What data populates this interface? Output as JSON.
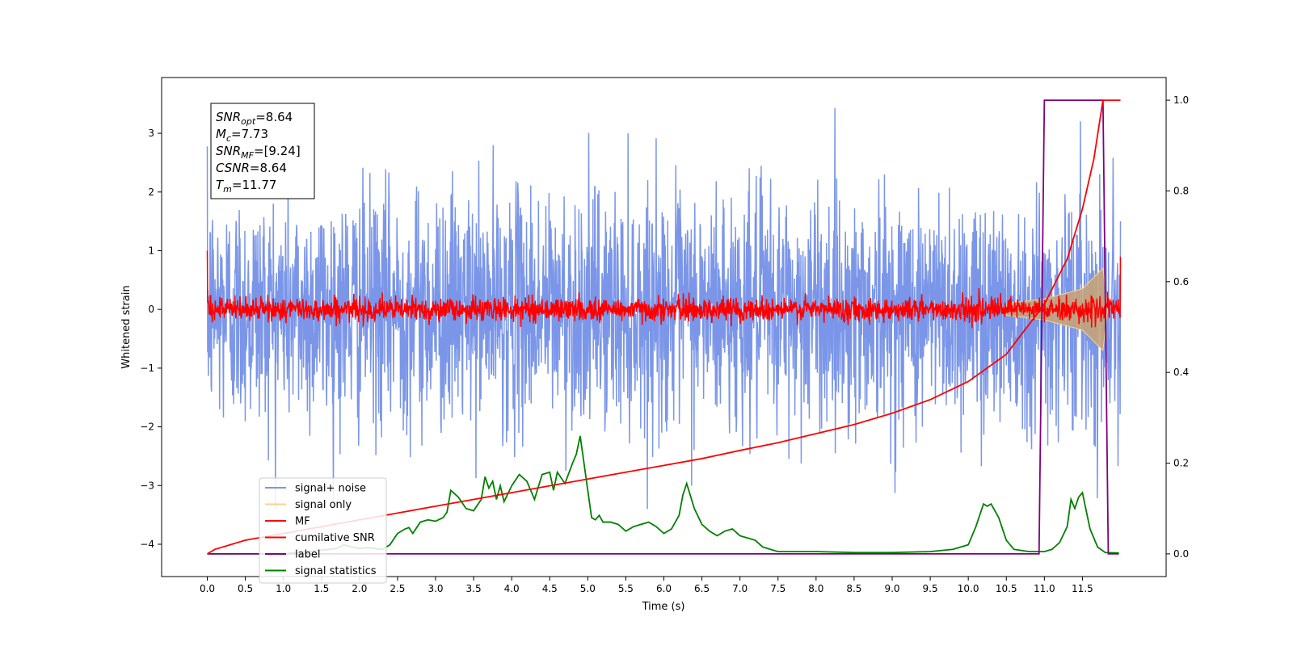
{
  "chart_data": {
    "type": "line",
    "xlabel": "Time (s)",
    "ylabel": "Whitened strain",
    "xlim": [
      -0.6,
      12.6
    ],
    "ylim": [
      -4.55,
      3.95
    ],
    "y2lim": [
      -0.05,
      1.05
    ],
    "x_ticks": [
      0.0,
      0.5,
      1.0,
      1.5,
      2.0,
      2.5,
      3.0,
      3.5,
      4.0,
      4.5,
      5.0,
      5.5,
      6.0,
      6.5,
      7.0,
      7.5,
      8.0,
      8.5,
      9.0,
      9.5,
      10.0,
      10.5,
      11.0,
      11.5
    ],
    "x_tick_labels": [
      "0.0",
      "0.5",
      "1.0",
      "1.5",
      "2.0",
      "2.5",
      "3.0",
      "3.5",
      "4.0",
      "4.5",
      "5.0",
      "5.5",
      "6.0",
      "6.5",
      "7.0",
      "7.5",
      "8.0",
      "8.5",
      "9.0",
      "9.5",
      "10.0",
      "10.5",
      "11.0",
      "11.5"
    ],
    "y_ticks": [
      3,
      2,
      1,
      0,
      -1,
      -2,
      -3,
      -4
    ],
    "y_tick_labels": [
      "3",
      "2",
      "1",
      "0",
      "−1",
      "−2",
      "−3",
      "−4"
    ],
    "y2_ticks": [
      1.0,
      0.8,
      0.6,
      0.4,
      0.2,
      0.0
    ],
    "y2_tick_labels": [
      "1.0",
      "0.8",
      "0.6",
      "0.4",
      "0.2",
      "0.0"
    ],
    "annotation": {
      "lines": [
        {
          "base": "SNR",
          "sub": "opt",
          "value": "=8.64"
        },
        {
          "base": "M",
          "sub": "c",
          "value": "=7.73"
        },
        {
          "base": "SNR",
          "sub": "MF",
          "value": "=[9.24]"
        },
        {
          "base": "CSNR",
          "sub": "",
          "value": "=8.64"
        },
        {
          "base": "T",
          "sub": "m",
          "value": "=11.77"
        }
      ]
    },
    "legend": {
      "placement": "lower-left",
      "entries": [
        {
          "label": "signal+ noise",
          "color": "#7b96e8"
        },
        {
          "label": "signal only",
          "color": "#f9d48c"
        },
        {
          "label": "MF",
          "color": "#ff0000"
        },
        {
          "label": "cumilative SNR",
          "color": "#ff0000"
        },
        {
          "label": "label",
          "color": "#800080"
        },
        {
          "label": "signal statistics",
          "color": "#008000"
        }
      ]
    },
    "series": [
      {
        "name": "signal+ noise",
        "axis": "left",
        "color": "#7b96e8",
        "x_range": [
          0.0,
          12.0
        ],
        "noise_std": 1.0,
        "noise_range": [
          -3.4,
          3.55
        ]
      },
      {
        "name": "signal only",
        "axis": "left",
        "color": "#f9d48c",
        "x_range": [
          0.0,
          12.0
        ],
        "envelope": [
          [
            10.5,
            0.1
          ],
          [
            11.0,
            0.18
          ],
          [
            11.5,
            0.35
          ],
          [
            11.77,
            0.7
          ]
        ]
      },
      {
        "name": "MF",
        "axis": "left",
        "color": "#ff0000",
        "x_range": [
          0.0,
          12.0
        ],
        "level": 0.0,
        "noise_std": 0.1,
        "start_value": 1.0,
        "end_value": 0.9
      },
      {
        "name": "cumilative SNR",
        "axis": "right",
        "color": "#ff0000",
        "x": [
          0.0,
          0.1,
          0.5,
          1.0,
          1.5,
          2.0,
          2.5,
          3.0,
          3.5,
          4.0,
          4.5,
          5.0,
          5.5,
          6.0,
          6.5,
          7.0,
          7.5,
          8.0,
          8.5,
          9.0,
          9.5,
          10.0,
          10.5,
          11.0,
          11.3,
          11.5,
          11.65,
          11.77,
          12.0
        ],
        "y": [
          0.0,
          0.01,
          0.03,
          0.045,
          0.06,
          0.075,
          0.09,
          0.105,
          0.12,
          0.135,
          0.15,
          0.165,
          0.18,
          0.195,
          0.21,
          0.228,
          0.245,
          0.265,
          0.285,
          0.31,
          0.34,
          0.38,
          0.44,
          0.55,
          0.65,
          0.76,
          0.87,
          1.0,
          1.0
        ]
      },
      {
        "name": "label",
        "axis": "right",
        "color": "#800080",
        "x": [
          0.0,
          10.93,
          11.0,
          11.77,
          11.84,
          11.98
        ],
        "y": [
          0.0,
          0.0,
          1.0,
          1.0,
          0.0,
          0.0
        ]
      },
      {
        "name": "signal statistics",
        "axis": "right",
        "color": "#008000",
        "x": [
          0.0,
          0.5,
          1.0,
          1.3,
          1.5,
          1.7,
          1.8,
          1.9,
          2.0,
          2.1,
          2.2,
          2.3,
          2.4,
          2.5,
          2.6,
          2.65,
          2.7,
          2.8,
          2.9,
          3.0,
          3.1,
          3.15,
          3.2,
          3.3,
          3.4,
          3.5,
          3.6,
          3.65,
          3.7,
          3.75,
          3.8,
          3.85,
          3.9,
          4.0,
          4.1,
          4.2,
          4.3,
          4.4,
          4.5,
          4.55,
          4.6,
          4.7,
          4.8,
          4.85,
          4.9,
          4.95,
          5.0,
          5.05,
          5.1,
          5.15,
          5.2,
          5.3,
          5.4,
          5.5,
          5.6,
          5.7,
          5.8,
          5.9,
          6.0,
          6.1,
          6.2,
          6.25,
          6.3,
          6.4,
          6.5,
          6.6,
          6.7,
          6.8,
          6.9,
          7.0,
          7.1,
          7.2,
          7.3,
          7.5,
          8.0,
          8.5,
          9.0,
          9.5,
          9.8,
          10.0,
          10.05,
          10.1,
          10.2,
          10.25,
          10.3,
          10.4,
          10.5,
          10.6,
          10.8,
          11.0,
          11.1,
          11.2,
          11.3,
          11.35,
          11.4,
          11.45,
          11.5,
          11.6,
          11.7,
          11.8,
          11.98
        ],
        "y": [
          0.0,
          0.0,
          0.0,
          0.005,
          0.008,
          0.012,
          0.02,
          0.015,
          0.012,
          0.014,
          0.012,
          0.01,
          0.02,
          0.045,
          0.055,
          0.058,
          0.045,
          0.07,
          0.075,
          0.072,
          0.08,
          0.092,
          0.14,
          0.125,
          0.1,
          0.095,
          0.12,
          0.17,
          0.145,
          0.16,
          0.12,
          0.15,
          0.115,
          0.15,
          0.175,
          0.16,
          0.12,
          0.175,
          0.18,
          0.14,
          0.18,
          0.155,
          0.2,
          0.22,
          0.26,
          0.2,
          0.14,
          0.08,
          0.075,
          0.085,
          0.07,
          0.07,
          0.065,
          0.05,
          0.06,
          0.065,
          0.07,
          0.06,
          0.045,
          0.055,
          0.085,
          0.13,
          0.155,
          0.1,
          0.065,
          0.05,
          0.04,
          0.05,
          0.055,
          0.04,
          0.035,
          0.03,
          0.015,
          0.005,
          0.005,
          0.003,
          0.003,
          0.005,
          0.01,
          0.02,
          0.04,
          0.06,
          0.11,
          0.105,
          0.11,
          0.08,
          0.03,
          0.01,
          0.005,
          0.005,
          0.01,
          0.025,
          0.06,
          0.12,
          0.1,
          0.125,
          0.135,
          0.055,
          0.015,
          0.003,
          0.002
        ]
      }
    ]
  }
}
